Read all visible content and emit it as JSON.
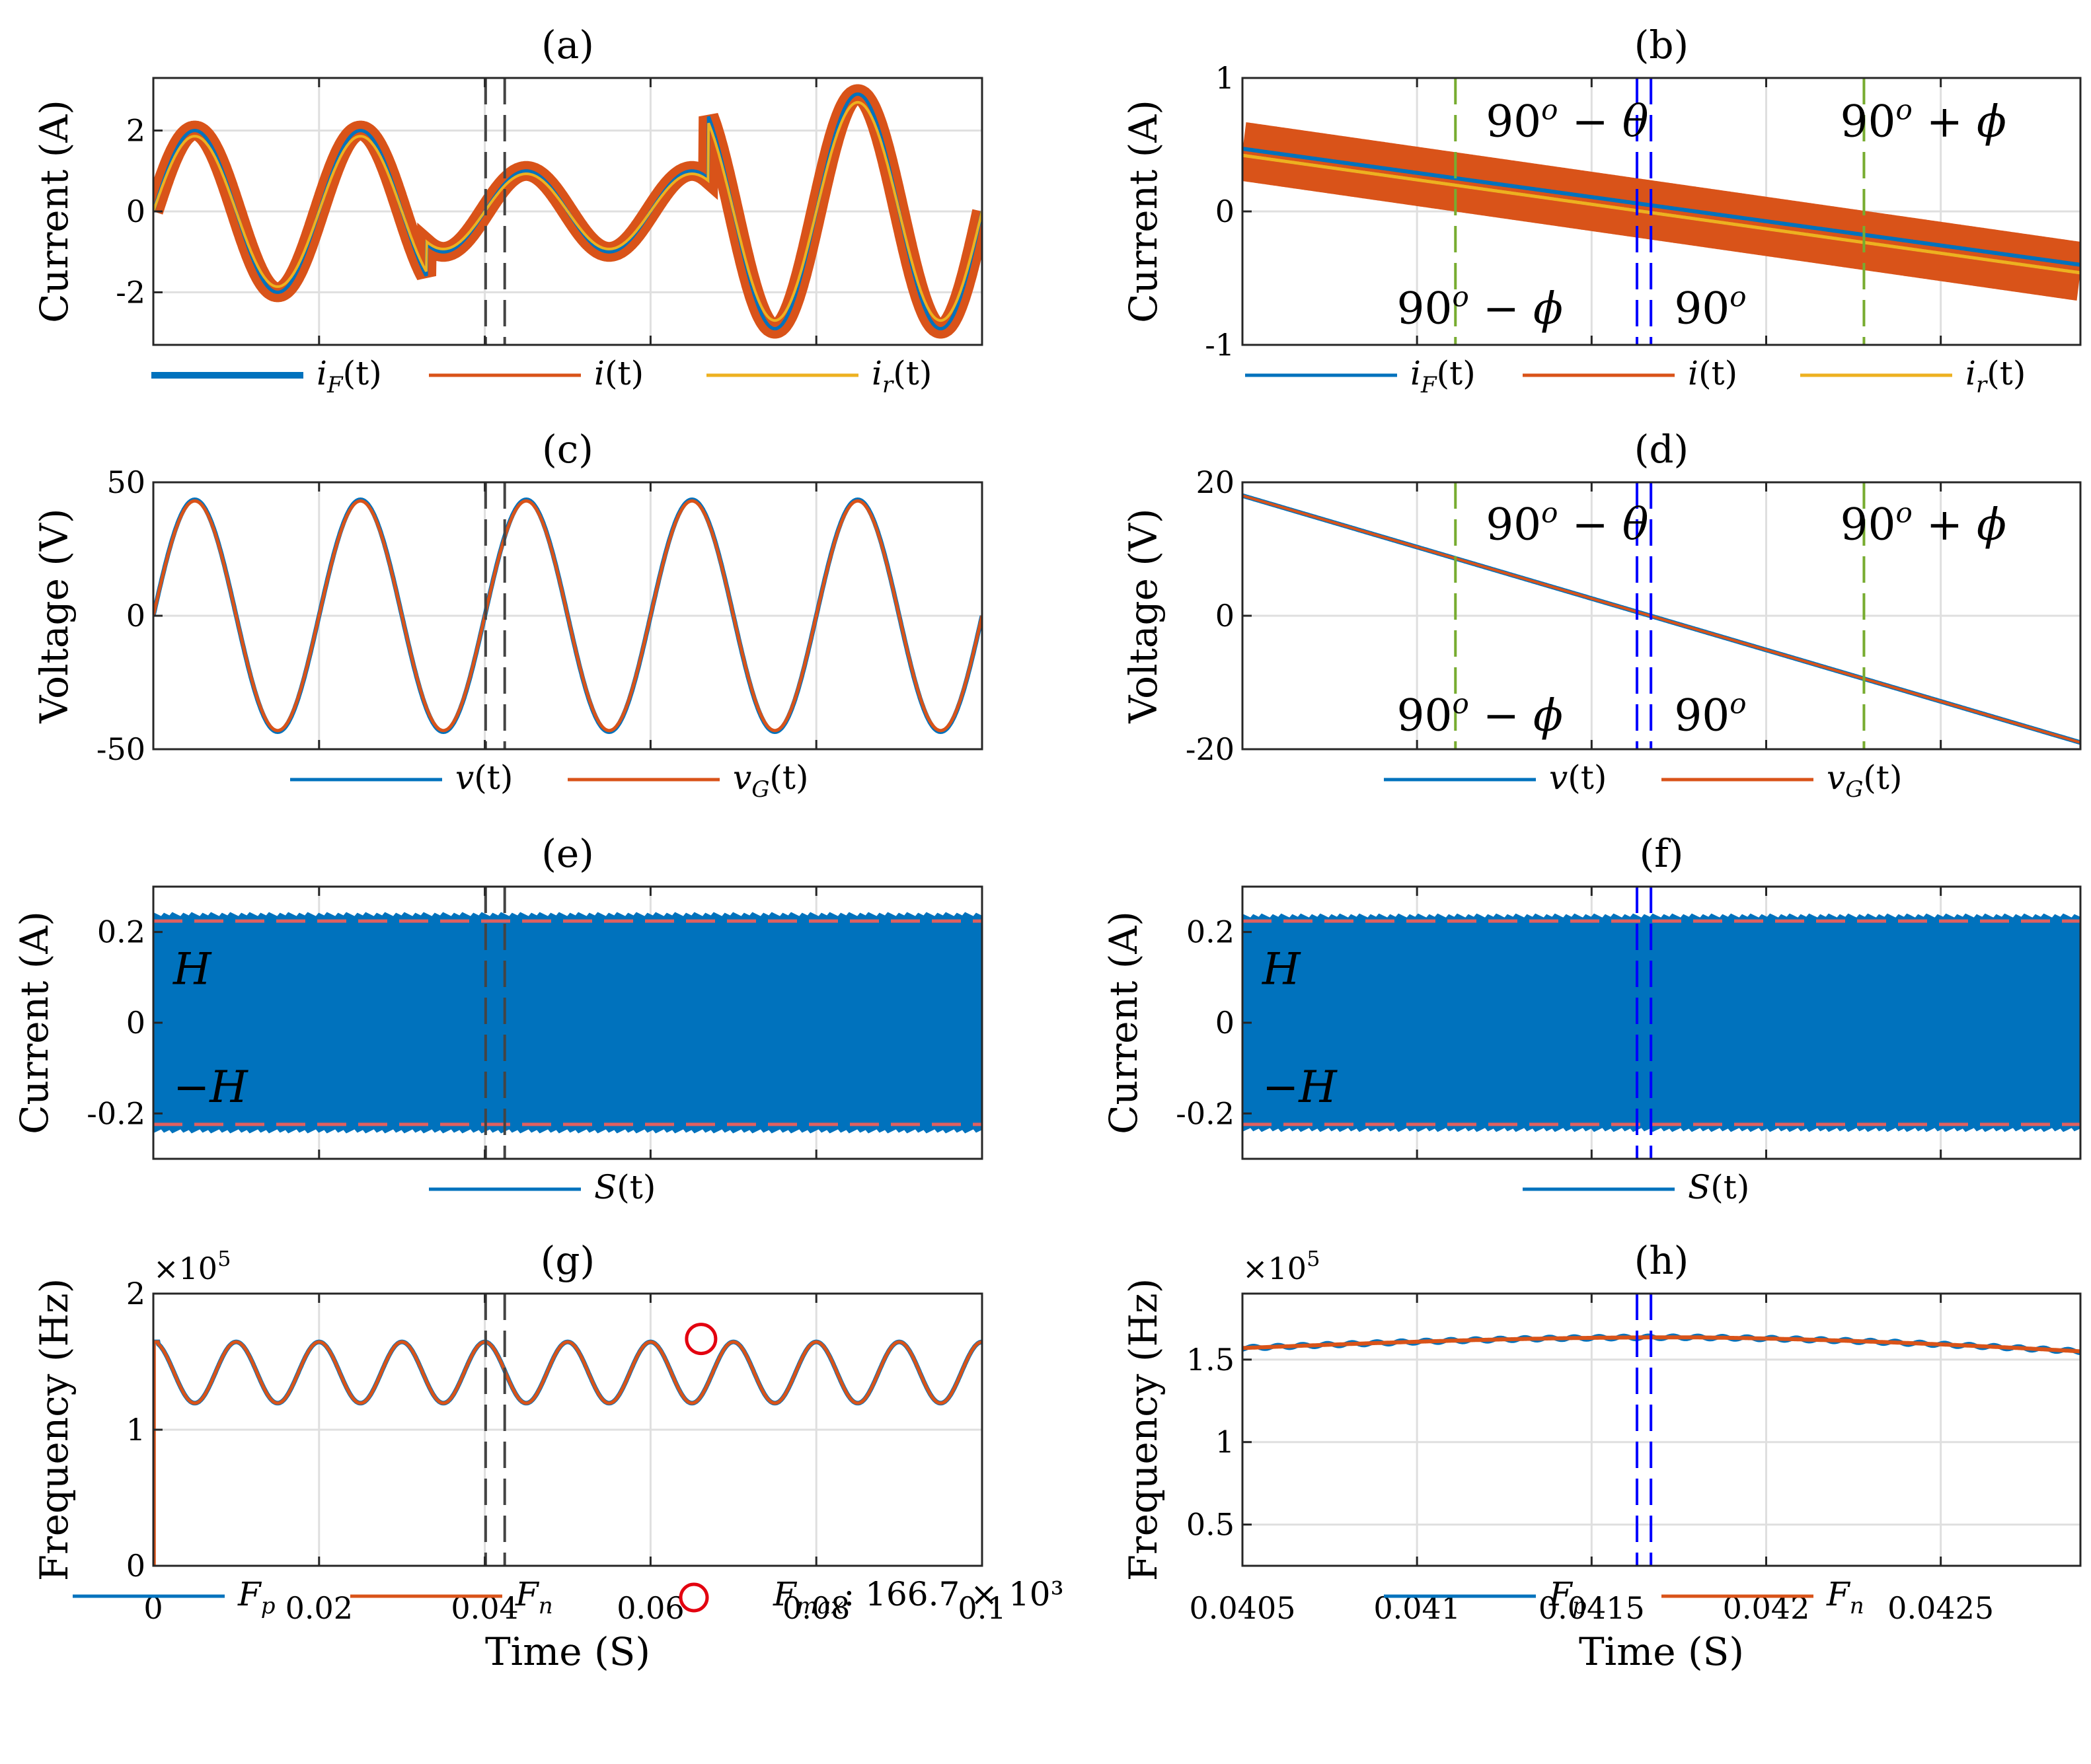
{
  "figure": {
    "colors": {
      "blue": "#0072BD",
      "orange": "#D95319",
      "yellow": "#EDB120",
      "green": "#77AC30",
      "annBlue": "#0000FF",
      "red": "#E3000F",
      "gray": "#444444",
      "grid": "#DFDFDF"
    }
  },
  "chart_data": [
    {
      "id": "a",
      "title": "(a)",
      "type": "line",
      "ylabel": "Current (A)",
      "xlabel": "",
      "xlim": [
        0,
        0.1
      ],
      "ylim": [
        -3.3,
        3.3
      ],
      "yticks": [
        {
          "v": -2,
          "label": "-2"
        },
        {
          "v": 0,
          "label": "0"
        },
        {
          "v": 2,
          "label": "2"
        }
      ],
      "xticks": [
        0,
        0.02,
        0.04,
        0.06,
        0.08,
        0.1
      ],
      "xtick_labels_shown": false,
      "amplitude_segments": [
        {
          "t0": 0,
          "t1": 0.033,
          "amp": 2.0
        },
        {
          "t0": 0.033,
          "t1": 0.067,
          "amp": 1.0
        },
        {
          "t0": 0.067,
          "t1": 0.1,
          "amp": 2.9
        }
      ],
      "frequency_hz": 50,
      "series": [
        {
          "name": "i(t)",
          "style": "orange band width 0.35 A"
        },
        {
          "name": "iF(t)",
          "style": "blue line"
        },
        {
          "name": "ir(t)",
          "style": "yellow line, slightly lower amplitude"
        }
      ],
      "vlines": [
        0.0401,
        0.0424
      ],
      "legend": [
        {
          "base": "i",
          "sub": "F",
          "rest": "(t)",
          "color": "blue",
          "thick": true
        },
        {
          "base": "i",
          "sub": "",
          "rest": "(t)",
          "color": "orange"
        },
        {
          "base": "i",
          "sub": "r",
          "rest": "(t)",
          "color": "yellow"
        }
      ]
    },
    {
      "id": "b",
      "title": "(b)",
      "type": "line",
      "ylabel": "Current (A)",
      "xlabel": "",
      "xlim": [
        0.0405,
        0.0429
      ],
      "ylim": [
        -1,
        1
      ],
      "yticks": [
        {
          "v": -1,
          "label": "-1"
        },
        {
          "v": 0,
          "label": "0"
        },
        {
          "v": 1,
          "label": "1"
        }
      ],
      "xticks": [
        0.0405,
        0.041,
        0.0415,
        0.042,
        0.0425
      ],
      "xtick_labels_shown": false,
      "series": [
        {
          "name": "i(t)",
          "start": 0.45,
          "end": -0.45,
          "band": 0.22
        },
        {
          "name": "iF(t)",
          "start": 0.47,
          "end": -0.4
        },
        {
          "name": "ir(t)",
          "start": 0.42,
          "end": -0.46
        }
      ],
      "vlines": [
        {
          "t": 0.04111,
          "color": "green"
        },
        {
          "t": 0.04163,
          "color": "annBlue"
        },
        {
          "t": 0.04167,
          "color": "annBlue"
        },
        {
          "t": 0.04228,
          "color": "green"
        }
      ],
      "annotations": [
        {
          "id": "b-ann-90-minus-theta",
          "parts": [
            "90",
            "o",
            " − ",
            "θ"
          ],
          "color": "annBlue",
          "x": 0.04143,
          "y": 0.68
        },
        {
          "id": "b-ann-90-plus-phi",
          "parts": [
            "90",
            "o",
            " + ",
            "ϕ"
          ],
          "color": "green",
          "x": 0.04245,
          "y": 0.68
        },
        {
          "id": "b-ann-90-minus-phi",
          "parts": [
            "90",
            "o",
            " − ",
            "ϕ"
          ],
          "color": "green",
          "x": 0.04118,
          "y": -0.72
        },
        {
          "id": "b-ann-90",
          "parts": [
            "90",
            "o",
            "",
            ""
          ],
          "color": "annBlue",
          "x": 0.04184,
          "y": -0.72
        }
      ],
      "legend": [
        {
          "base": "i",
          "sub": "F",
          "rest": "(t)",
          "color": "blue"
        },
        {
          "base": "i",
          "sub": "",
          "rest": "(t)",
          "color": "orange"
        },
        {
          "base": "i",
          "sub": "r",
          "rest": "(t)",
          "color": "yellow"
        }
      ]
    },
    {
      "id": "c",
      "title": "(c)",
      "type": "line",
      "ylabel": "Voltage (V)",
      "xlabel": "",
      "xlim": [
        0,
        0.1
      ],
      "ylim": [
        -50,
        50
      ],
      "yticks": [
        {
          "v": -50,
          "label": "-50"
        },
        {
          "v": 0,
          "label": "0"
        },
        {
          "v": 50,
          "label": "50"
        }
      ],
      "xticks": [
        0,
        0.02,
        0.04,
        0.06,
        0.08,
        0.1
      ],
      "xtick_labels_shown": false,
      "amplitude": 43,
      "frequency_hz": 50,
      "series": [
        {
          "name": "v(t)"
        },
        {
          "name": "vG(t)"
        }
      ],
      "vlines": [
        0.0401,
        0.0424
      ],
      "legend": [
        {
          "base": "v",
          "sub": "",
          "rest": "(t)",
          "color": "blue"
        },
        {
          "base": "v",
          "sub": "G",
          "rest": "(t)",
          "color": "orange"
        }
      ]
    },
    {
      "id": "d",
      "title": "(d)",
      "type": "line",
      "ylabel": "Voltage (V)",
      "xlabel": "",
      "xlim": [
        0.0405,
        0.0429
      ],
      "ylim": [
        -20,
        20
      ],
      "yticks": [
        {
          "v": -20,
          "label": "-20"
        },
        {
          "v": 0,
          "label": "0"
        },
        {
          "v": 20,
          "label": "20"
        }
      ],
      "xticks": [
        0.0405,
        0.041,
        0.0415,
        0.042,
        0.0425
      ],
      "xtick_labels_shown": false,
      "series": [
        {
          "name": "v(t)",
          "start": 18,
          "end": -19
        },
        {
          "name": "vG(t)",
          "start": 18,
          "end": -19
        }
      ],
      "vlines": [
        {
          "t": 0.04111,
          "color": "green"
        },
        {
          "t": 0.04163,
          "color": "annBlue"
        },
        {
          "t": 0.04167,
          "color": "annBlue"
        },
        {
          "t": 0.04228,
          "color": "green"
        }
      ],
      "annotations": [
        {
          "id": "d-ann-90-minus-theta",
          "parts": [
            "90",
            "o",
            " − ",
            "θ"
          ],
          "color": "annBlue",
          "x": 0.04143,
          "y": 13.8
        },
        {
          "id": "d-ann-90-plus-phi",
          "parts": [
            "90",
            "o",
            " + ",
            "ϕ"
          ],
          "color": "green",
          "x": 0.04245,
          "y": 13.8
        },
        {
          "id": "d-ann-90-minus-phi",
          "parts": [
            "90",
            "o",
            " − ",
            "ϕ"
          ],
          "color": "green",
          "x": 0.04118,
          "y": -14.8
        },
        {
          "id": "d-ann-90",
          "parts": [
            "90",
            "o",
            "",
            ""
          ],
          "color": "annBlue",
          "x": 0.04184,
          "y": -14.8
        }
      ],
      "legend": [
        {
          "base": "v",
          "sub": "",
          "rest": "(t)",
          "color": "blue"
        },
        {
          "base": "v",
          "sub": "G",
          "rest": "(t)",
          "color": "orange"
        }
      ]
    },
    {
      "id": "e",
      "title": "(e)",
      "type": "area",
      "ylabel": "Current (A)",
      "xlabel": "",
      "xlim": [
        0,
        0.1
      ],
      "ylim": [
        -0.3,
        0.3
      ],
      "yticks": [
        {
          "v": -0.2,
          "label": "-0.2"
        },
        {
          "v": 0,
          "label": "0"
        },
        {
          "v": 0.2,
          "label": "0.2"
        }
      ],
      "xticks": [
        0,
        0.02,
        0.04,
        0.06,
        0.08,
        0.1
      ],
      "xtick_labels_shown": false,
      "band": [
        -0.235,
        0.235
      ],
      "hysteresis": 0.224,
      "series": [
        {
          "name": "S(t)"
        }
      ],
      "vlines": [
        {
          "t": 0.0401,
          "color": "gray"
        },
        {
          "t": 0.0424,
          "color": "gray"
        }
      ],
      "labels": [
        {
          "text": "H",
          "y": 0.12
        },
        {
          "text": "−H",
          "y": -0.14
        }
      ],
      "legend": [
        {
          "base": "S",
          "sub": "",
          "rest": "(t)",
          "color": "blue"
        }
      ]
    },
    {
      "id": "f",
      "title": "(f)",
      "type": "area",
      "ylabel": "Current (A)",
      "xlabel": "",
      "xlim": [
        0.0405,
        0.0429
      ],
      "ylim": [
        -0.3,
        0.3
      ],
      "yticks": [
        {
          "v": -0.2,
          "label": "-0.2"
        },
        {
          "v": 0,
          "label": "0"
        },
        {
          "v": 0.2,
          "label": "0.2"
        }
      ],
      "xticks": [
        0.0405,
        0.041,
        0.0415,
        0.042,
        0.0425
      ],
      "xtick_labels_shown": false,
      "band": [
        -0.232,
        0.232
      ],
      "hysteresis": 0.224,
      "series": [
        {
          "name": "S(t)"
        }
      ],
      "vlines": [
        {
          "t": 0.04163,
          "color": "annBlue"
        },
        {
          "t": 0.04167,
          "color": "annBlue"
        }
      ],
      "labels": [
        {
          "text": "H",
          "y": 0.12
        },
        {
          "text": "−H",
          "y": -0.14
        }
      ],
      "legend": [
        {
          "base": "S",
          "sub": "",
          "rest": "(t)",
          "color": "blue"
        }
      ]
    },
    {
      "id": "g",
      "title": "(g)",
      "type": "line",
      "ylabel": "Frequency (Hz)",
      "xlabel": "Time (S)",
      "exponent": {
        "base": "×10",
        "power": "5"
      },
      "xlim": [
        0,
        0.1
      ],
      "ylim": [
        0,
        200000
      ],
      "yticks": [
        {
          "v": 0,
          "label": "0"
        },
        {
          "v": 100000,
          "label": "1"
        },
        {
          "v": 200000,
          "label": "2"
        }
      ],
      "xticks": [
        0,
        0.02,
        0.04,
        0.06,
        0.08,
        0.1
      ],
      "xtick_labels": [
        "0",
        "0.02",
        "0.04",
        "0.06",
        "0.08",
        "0.1"
      ],
      "mean": 142000,
      "amplitude": 22500,
      "frequency_hz": 100,
      "series": [
        {
          "name": "Fp"
        },
        {
          "name": "Fn"
        }
      ],
      "marker": {
        "x": 0.0661,
        "y": 166700
      },
      "vlines": [
        {
          "t": 0.0401,
          "color": "gray"
        },
        {
          "t": 0.0424,
          "color": "gray"
        }
      ],
      "legend": [
        {
          "base": "F",
          "sub": "p",
          "rest": "",
          "color": "blue"
        },
        {
          "base": "F",
          "sub": "n",
          "rest": "",
          "color": "orange"
        },
        {
          "base": "F",
          "sub": "max",
          "rest": ": 166.7 × 10³",
          "color": "red",
          "marker": true
        }
      ]
    },
    {
      "id": "h",
      "title": "(h)",
      "type": "line",
      "ylabel": "Frequency (Hz)",
      "xlabel": "Time (S)",
      "exponent": {
        "base": "×10",
        "power": "5"
      },
      "xlim": [
        0.0405,
        0.0429
      ],
      "ylim": [
        25000,
        190000
      ],
      "yticks": [
        {
          "v": 50000,
          "label": "0.5"
        },
        {
          "v": 100000,
          "label": "1"
        },
        {
          "v": 150000,
          "label": "1.5"
        }
      ],
      "xticks": [
        0.0405,
        0.041,
        0.0415,
        0.042,
        0.0425
      ],
      "xtick_labels": [
        "0.0405",
        "0.041",
        "0.0415",
        "0.042",
        "0.0425"
      ],
      "curve": {
        "start": 157000,
        "peak": 163500,
        "peak_t": 0.04175,
        "end": 155000
      },
      "series": [
        {
          "name": "Fp"
        },
        {
          "name": "Fn"
        }
      ],
      "vlines": [
        {
          "t": 0.04163,
          "color": "annBlue"
        },
        {
          "t": 0.04167,
          "color": "annBlue"
        }
      ],
      "legend": [
        {
          "base": "F",
          "sub": "p",
          "rest": "",
          "color": "blue"
        },
        {
          "base": "F",
          "sub": "n",
          "rest": "",
          "color": "orange"
        }
      ]
    }
  ]
}
